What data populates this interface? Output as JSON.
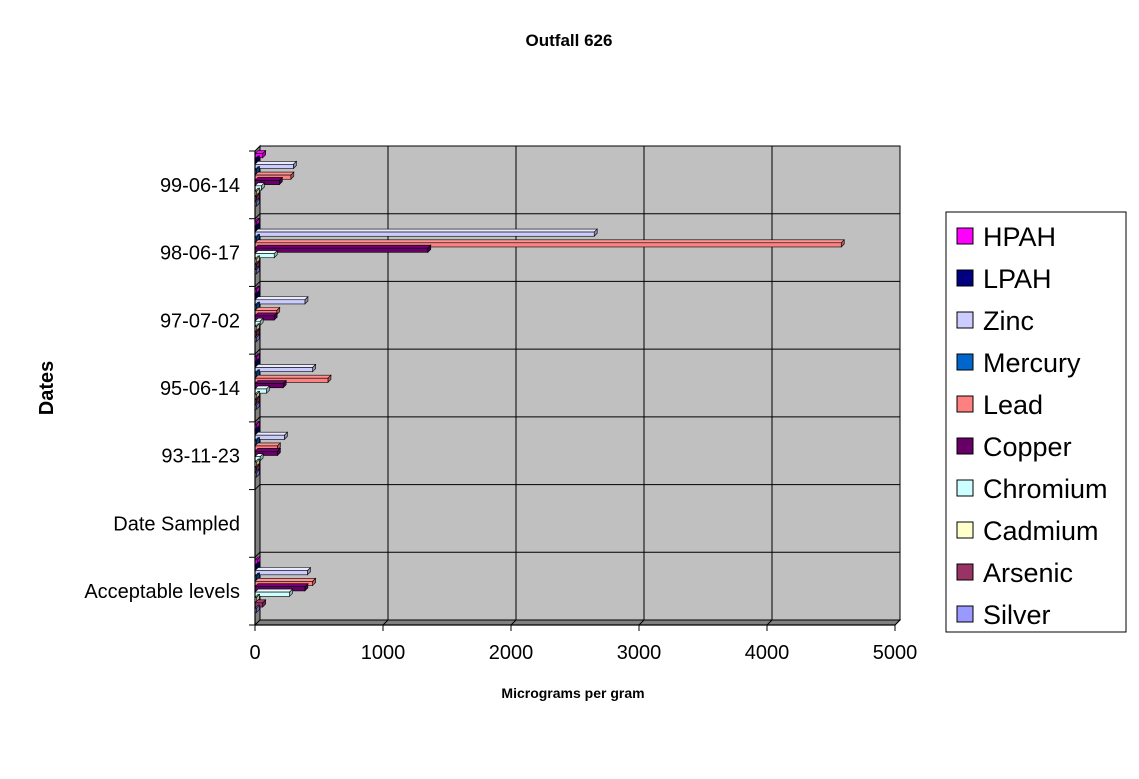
{
  "chart_data": {
    "type": "bar",
    "orientation": "horizontal",
    "style": "3d-clustered",
    "title": "Outfall 626",
    "xlabel": "Micrograms per gram",
    "ylabel": "Dates",
    "xlim": [
      0,
      5000
    ],
    "xticks": [
      0,
      1000,
      2000,
      3000,
      4000,
      5000
    ],
    "grid": true,
    "legend_position": "right",
    "categories": [
      "Acceptable levels",
      "Date Sampled",
      "93-11-23",
      "95-06-14",
      "97-07-02",
      "98-06-17",
      "99-06-14"
    ],
    "series": [
      {
        "name": "Silver",
        "color": "#9999FF",
        "values": [
          5,
          0,
          3,
          3,
          3,
          3,
          3
        ]
      },
      {
        "name": "Arsenic",
        "color": "#993366",
        "values": [
          60,
          0,
          8,
          8,
          8,
          8,
          8
        ]
      },
      {
        "name": "Cadmium",
        "color": "#FFFFCC",
        "values": [
          10,
          0,
          3,
          3,
          3,
          3,
          3
        ]
      },
      {
        "name": "Chromium",
        "color": "#CCFFFF",
        "values": [
          270,
          0,
          40,
          90,
          40,
          150,
          50
        ]
      },
      {
        "name": "Copper",
        "color": "#660066",
        "values": [
          390,
          0,
          175,
          220,
          150,
          1350,
          190
        ]
      },
      {
        "name": "Lead",
        "color": "#FF8080",
        "values": [
          450,
          0,
          175,
          570,
          170,
          4580,
          280
        ]
      },
      {
        "name": "Mercury",
        "color": "#0066CC",
        "values": [
          1,
          0,
          0.5,
          0.5,
          0.5,
          0.5,
          0.5
        ]
      },
      {
        "name": "Zinc",
        "color": "#CCCCFF",
        "values": [
          410,
          0,
          230,
          450,
          390,
          2650,
          300
        ]
      },
      {
        "name": "LPAH",
        "color": "#000080",
        "values": [
          5,
          0,
          2,
          2,
          2,
          2,
          2
        ]
      },
      {
        "name": "HPAH",
        "color": "#FF00FF",
        "values": [
          17,
          0,
          5,
          5,
          5,
          5,
          60
        ]
      }
    ],
    "legend_order": [
      "HPAH",
      "LPAH",
      "Zinc",
      "Mercury",
      "Lead",
      "Copper",
      "Chromium",
      "Cadmium",
      "Arsenic",
      "Silver"
    ],
    "plot_background": "#C0C0C0"
  }
}
